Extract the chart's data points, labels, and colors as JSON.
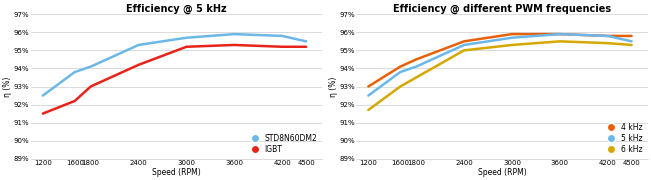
{
  "speed": [
    1200,
    1600,
    1800,
    2400,
    3000,
    3600,
    4200,
    4500
  ],
  "chart1_title": "Efficiency @ 5 kHz",
  "chart1_std": [
    92.5,
    93.8,
    94.1,
    95.3,
    95.7,
    95.9,
    95.8,
    95.5
  ],
  "chart1_igbt": [
    91.5,
    92.2,
    93.0,
    94.2,
    95.2,
    95.3,
    95.2,
    95.2
  ],
  "chart1_std_color": "#6BB8E8",
  "chart1_igbt_color": "#E8231A",
  "chart2_title": "Efficiency @ different PWM frequencies",
  "chart2_4khz": [
    93.0,
    94.1,
    94.5,
    95.5,
    95.9,
    95.9,
    95.8,
    95.8
  ],
  "chart2_5khz": [
    92.5,
    93.8,
    94.1,
    95.3,
    95.7,
    95.9,
    95.8,
    95.5
  ],
  "chart2_6khz": [
    91.7,
    93.0,
    93.5,
    95.0,
    95.3,
    95.5,
    95.4,
    95.3
  ],
  "chart2_4khz_color": "#E8600A",
  "chart2_5khz_color": "#6BB8E8",
  "chart2_6khz_color": "#D4A800",
  "ylabel": "η (%)",
  "xlabel": "Speed (RPM)",
  "ylim": [
    89,
    97
  ],
  "yticks": [
    89,
    90,
    91,
    92,
    93,
    94,
    95,
    96,
    97
  ],
  "ytick_labels": [
    "89%",
    "90%",
    "91%",
    "92%",
    "93%",
    "94%",
    "95%",
    "96%",
    "97%"
  ],
  "bg_color": "#FFFFFF",
  "grid_color": "#CCCCCC",
  "lw": 1.8,
  "title_fontsize": 7.0,
  "tick_fontsize": 5.0,
  "label_fontsize": 5.5,
  "legend_fontsize": 5.5,
  "marker_size": 6
}
